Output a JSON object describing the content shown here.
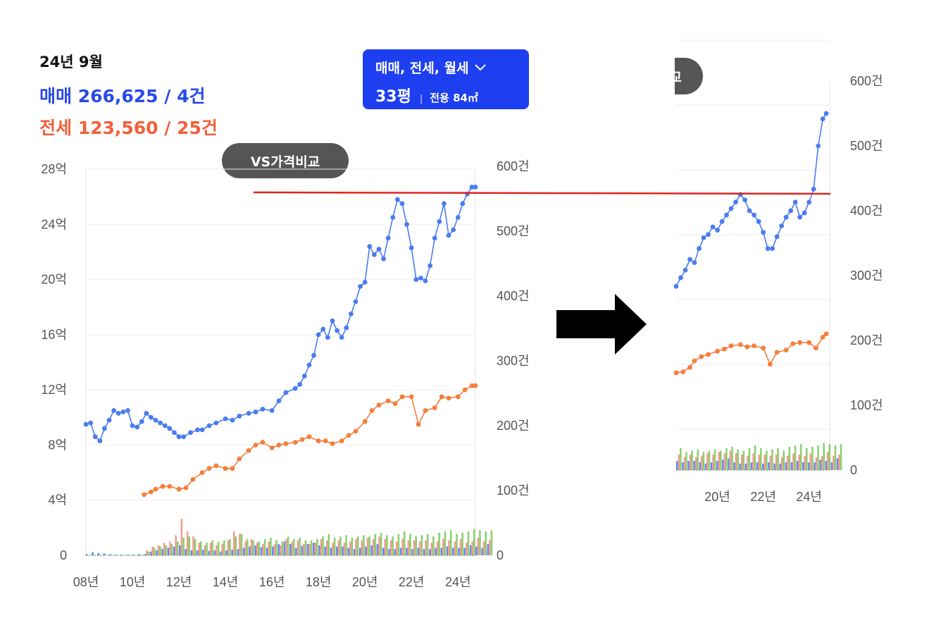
{
  "header": {
    "date": "24년 9월",
    "sale_line": "매매 266,625 / 4건",
    "jeonse_line": "전세 123,560 / 25건"
  },
  "filter": {
    "types": "매매, 전세, 월세",
    "size": "33평",
    "area": "전용 84㎡",
    "chevron_icon": "chevron-down-icon"
  },
  "vs_button": {
    "label": "VS가격비교"
  },
  "zoom_button": {
    "label": "교"
  },
  "colors": {
    "sale": "#4a7cf0",
    "jeonse": "#f47f3c",
    "sale_vol": "#3b5ff0",
    "jeonse_vol": "#f27a6a",
    "rent_vol": "#62c13f",
    "ref_line": "#e0241f",
    "filter_bg": "#1e3ff0"
  },
  "chart_data": [
    {
      "type": "line",
      "x_tick_labels": [
        "08년",
        "10년",
        "12년",
        "14년",
        "16년",
        "18년",
        "20년",
        "22년",
        "24년"
      ],
      "y_left_tick_labels": [
        "0",
        "4억",
        "8억",
        "12억",
        "16억",
        "20억",
        "24억",
        "28억"
      ],
      "y_right_tick_labels": [
        "0",
        "100건",
        "200건",
        "300건",
        "400건",
        "500건",
        "600건"
      ],
      "ylim_left": [
        0,
        28
      ],
      "ylim_right": [
        0,
        600
      ],
      "xlim": [
        2008,
        2024.75
      ],
      "series": [
        {
          "kind": "sale_price",
          "color": "#4a7cf0",
          "x": [
            2008,
            2008.2,
            2008.4,
            2008.6,
            2008.8,
            2009,
            2009.2,
            2009.4,
            2009.6,
            2009.8,
            2010,
            2010.2,
            2010.4,
            2010.6,
            2010.8,
            2011,
            2011.2,
            2011.4,
            2011.6,
            2011.8,
            2012,
            2012.2,
            2012.5,
            2012.8,
            2013,
            2013.3,
            2013.6,
            2014,
            2014.3,
            2014.6,
            2015,
            2015.3,
            2015.6,
            2016,
            2016.3,
            2016.6,
            2017,
            2017.2,
            2017.4,
            2017.6,
            2017.8,
            2018,
            2018.2,
            2018.4,
            2018.6,
            2018.8,
            2019,
            2019.2,
            2019.4,
            2019.6,
            2019.8,
            2020,
            2020.2,
            2020.4,
            2020.6,
            2020.8,
            2021,
            2021.2,
            2021.4,
            2021.6,
            2021.8,
            2022,
            2022.2,
            2022.4,
            2022.6,
            2022.8,
            2023,
            2023.2,
            2023.4,
            2023.6,
            2023.8,
            2024,
            2024.2,
            2024.4,
            2024.6,
            2024.75
          ],
          "y": [
            9.5,
            9.6,
            8.6,
            8.3,
            9.2,
            9.8,
            10.5,
            10.3,
            10.4,
            10.5,
            9.4,
            9.3,
            9.7,
            10.3,
            10.0,
            9.8,
            9.6,
            9.4,
            9.2,
            8.9,
            8.6,
            8.6,
            8.9,
            9.1,
            9.1,
            9.4,
            9.6,
            9.9,
            9.8,
            10.1,
            10.3,
            10.4,
            10.6,
            10.5,
            11.2,
            11.8,
            12.1,
            12.4,
            13.0,
            13.8,
            14.5,
            16.0,
            16.4,
            15.8,
            17.0,
            16.3,
            15.8,
            16.5,
            17.5,
            18.4,
            19.5,
            19.8,
            22.4,
            21.8,
            22.2,
            21.5,
            23.0,
            24.5,
            25.8,
            25.5,
            24.0,
            22.3,
            20.0,
            20.1,
            19.9,
            21.0,
            23.0,
            24.2,
            25.5,
            23.2,
            23.6,
            24.5,
            25.5,
            26.2,
            26.7,
            26.7
          ]
        },
        {
          "kind": "jeonse_price",
          "color": "#f47f3c",
          "x": [
            2010.5,
            2010.8,
            2011,
            2011.3,
            2011.6,
            2012,
            2012.3,
            2012.6,
            2013,
            2013.3,
            2013.6,
            2014,
            2014.3,
            2014.6,
            2015,
            2015.3,
            2015.6,
            2016,
            2016.3,
            2016.6,
            2017,
            2017.3,
            2017.6,
            2018,
            2018.3,
            2018.6,
            2019,
            2019.3,
            2019.6,
            2020,
            2020.3,
            2020.6,
            2021,
            2021.3,
            2021.6,
            2022,
            2022.3,
            2022.6,
            2023,
            2023.3,
            2023.6,
            2024,
            2024.3,
            2024.6,
            2024.75
          ],
          "y": [
            4.4,
            4.6,
            4.8,
            5.0,
            5.0,
            4.8,
            4.9,
            5.5,
            6.0,
            6.3,
            6.5,
            6.3,
            6.3,
            7.0,
            7.6,
            8.0,
            8.2,
            7.8,
            8.0,
            8.1,
            8.2,
            8.4,
            8.6,
            8.3,
            8.3,
            8.1,
            8.3,
            8.7,
            9.0,
            9.7,
            10.5,
            10.9,
            11.2,
            11.0,
            11.5,
            11.5,
            9.5,
            10.5,
            10.7,
            11.5,
            11.4,
            11.5,
            12.0,
            12.3,
            12.3
          ]
        }
      ],
      "volume": {
        "x_start": 2008,
        "x_step": 0.25,
        "sale": [
          2,
          5,
          4,
          3,
          2,
          1,
          1,
          1,
          1,
          2,
          2,
          6,
          8,
          10,
          12,
          14,
          16,
          10,
          8,
          8,
          9,
          7,
          8,
          6,
          8,
          9,
          10,
          12,
          14,
          16,
          13,
          12,
          14,
          18,
          22,
          18,
          12,
          15,
          18,
          20,
          16,
          14,
          12,
          14,
          14,
          12,
          10,
          12,
          14,
          16,
          18,
          12,
          10,
          10,
          12,
          12,
          10,
          12,
          10,
          10,
          12,
          12,
          14,
          12,
          12,
          12,
          16,
          14,
          12,
          18
        ],
        "jeonse": [
          0,
          0,
          0,
          0,
          0,
          0,
          0,
          0,
          0,
          0,
          8,
          14,
          16,
          20,
          22,
          32,
          58,
          38,
          30,
          20,
          16,
          20,
          16,
          18,
          24,
          38,
          34,
          22,
          26,
          20,
          18,
          22,
          18,
          16,
          26,
          22,
          24,
          18,
          18,
          20,
          26,
          24,
          20,
          24,
          20,
          22,
          26,
          24,
          28,
          26,
          30,
          26,
          24,
          22,
          26,
          24,
          24,
          22,
          24,
          20,
          22,
          26,
          24,
          22,
          26,
          20,
          22,
          28,
          22,
          24
        ],
        "rent": [
          0,
          0,
          0,
          0,
          0,
          0,
          0,
          0,
          0,
          0,
          6,
          12,
          14,
          16,
          18,
          22,
          28,
          30,
          26,
          22,
          20,
          24,
          22,
          24,
          26,
          30,
          34,
          26,
          24,
          22,
          26,
          28,
          24,
          22,
          30,
          26,
          28,
          24,
          24,
          26,
          30,
          34,
          28,
          30,
          32,
          28,
          30,
          32,
          30,
          34,
          36,
          32,
          30,
          34,
          38,
          34,
          30,
          32,
          34,
          30,
          36,
          38,
          40,
          34,
          36,
          38,
          42,
          40,
          38,
          40
        ]
      }
    },
    {
      "type": "line",
      "x_tick_labels": [
        "20년",
        "22년",
        "24년"
      ],
      "y_right_tick_labels": [
        "0",
        "100건",
        "200건",
        "300건",
        "400건",
        "500건",
        "600건"
      ],
      "series": [
        {
          "kind": "sale_price",
          "color": "#4a7cf0",
          "x": [
            2018.2,
            2018.4,
            2018.6,
            2018.8,
            2019,
            2019.2,
            2019.4,
            2019.6,
            2019.8,
            2020,
            2020.2,
            2020.4,
            2020.6,
            2020.8,
            2021,
            2021.2,
            2021.4,
            2021.6,
            2021.8,
            2022,
            2022.2,
            2022.4,
            2022.6,
            2022.8,
            2023,
            2023.2,
            2023.4,
            2023.6,
            2023.8,
            2024,
            2024.2,
            2024.4,
            2024.6,
            2024.75
          ],
          "y": [
            17.0,
            17.8,
            18.5,
            19.5,
            19.2,
            20.5,
            21.5,
            21.8,
            22.5,
            22.2,
            23.0,
            23.6,
            24.2,
            24.8,
            25.5,
            25.0,
            24.0,
            23.6,
            23.0,
            22.0,
            20.5,
            20.5,
            21.6,
            22.6,
            23.4,
            24.0,
            24.8,
            23.4,
            23.8,
            24.8,
            26.0,
            30.0,
            32.5,
            33.0
          ]
        },
        {
          "kind": "jeonse_price",
          "color": "#f47f3c",
          "x": [
            2018.2,
            2018.5,
            2018.8,
            2019,
            2019.3,
            2019.6,
            2020,
            2020.3,
            2020.6,
            2021,
            2021.3,
            2021.6,
            2022,
            2022.3,
            2022.6,
            2023,
            2023.3,
            2023.6,
            2024,
            2024.3,
            2024.6,
            2024.75
          ],
          "y": [
            9.0,
            9.1,
            9.5,
            10.1,
            10.5,
            10.7,
            11.0,
            11.2,
            11.5,
            11.6,
            11.4,
            11.5,
            11.3,
            9.8,
            10.9,
            11.1,
            11.7,
            11.8,
            11.8,
            11.3,
            12.3,
            12.6
          ]
        }
      ]
    }
  ]
}
